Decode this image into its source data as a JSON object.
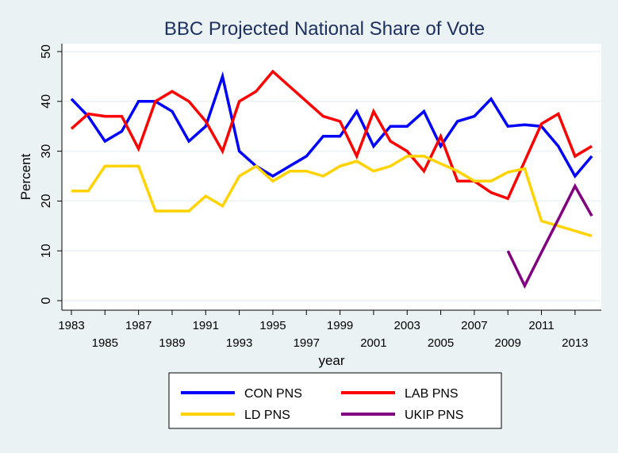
{
  "chart_data": {
    "type": "line",
    "title": "BBC Projected National Share of Vote",
    "xlabel": "year",
    "ylabel": "Percent",
    "ylim": [
      0,
      50
    ],
    "yticks": [
      0,
      10,
      20,
      30,
      40,
      50
    ],
    "xticks_upper": [
      "1983",
      "1987",
      "1991",
      "1995",
      "1999",
      "2003",
      "2007",
      "2011"
    ],
    "xticks_lower": [
      "1985",
      "1989",
      "1993",
      "1997",
      "2001",
      "2005",
      "2009",
      "2013"
    ],
    "grid": true,
    "legend_position": "bottom",
    "x": [
      1983,
      1984,
      1985,
      1986,
      1987,
      1988,
      1989,
      1990,
      1991,
      1992,
      1993,
      1994,
      1995,
      1996,
      1997,
      1998,
      1999,
      2000,
      2001,
      2002,
      2003,
      2004,
      2005,
      2006,
      2007,
      2008,
      2009,
      2010,
      2011,
      2012,
      2013,
      2014
    ],
    "series": [
      {
        "name": "CON PNS",
        "color": "#0000ff",
        "values": [
          40.5,
          37,
          32,
          34,
          40,
          40,
          38,
          32,
          35,
          45,
          30,
          27,
          25,
          27,
          29,
          33,
          33,
          38,
          31,
          35,
          35,
          38,
          31,
          36,
          37,
          40.5,
          35,
          35.3,
          35,
          31,
          25,
          29
        ]
      },
      {
        "name": "LAB PNS",
        "color": "#ff0000",
        "values": [
          34.5,
          37.5,
          37,
          37,
          30.5,
          40,
          42,
          40,
          36,
          30,
          40,
          42,
          46,
          43,
          40,
          37,
          36,
          29,
          38,
          32,
          30,
          26,
          33,
          24,
          24,
          21.7,
          20.5,
          28,
          35.5,
          37.5,
          29,
          31
        ]
      },
      {
        "name": "LD PNS",
        "color": "#ffd200",
        "values": [
          22,
          22,
          27,
          27,
          27,
          18,
          18,
          18,
          21,
          19,
          25,
          27,
          24,
          26,
          26,
          25,
          27,
          28,
          26,
          27,
          29,
          29,
          27.5,
          26,
          24,
          24,
          25.8,
          26.5,
          16,
          15,
          14,
          13
        ]
      },
      {
        "name": "UKIP PNS",
        "color": "#800080",
        "values": [
          null,
          null,
          null,
          null,
          null,
          null,
          null,
          null,
          null,
          null,
          null,
          null,
          null,
          null,
          null,
          null,
          null,
          null,
          null,
          null,
          null,
          null,
          null,
          null,
          null,
          null,
          10,
          3,
          9.7,
          16.3,
          23,
          17
        ]
      }
    ]
  }
}
